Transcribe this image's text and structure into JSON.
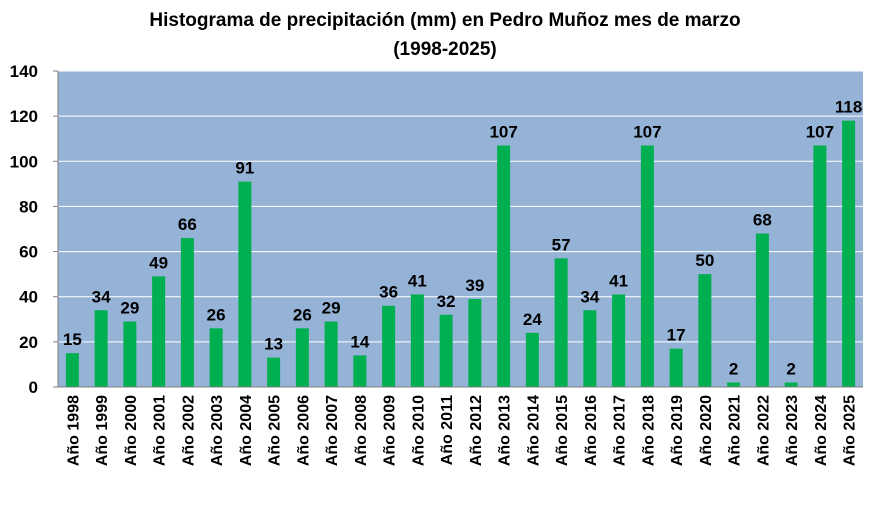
{
  "chart_data": {
    "type": "bar",
    "title": "Histograma de precipitación (mm) en Pedro Muñoz mes de marzo",
    "subtitle": "(1998-2025)",
    "categories": [
      "Año 1998",
      "Año 1999",
      "Año 2000",
      "Año 2001",
      "Año 2002",
      "Año 2003",
      "Año 2004",
      "Año 2005",
      "Año 2006",
      "Año 2007",
      "Año 2008",
      "Año 2009",
      "Año 2010",
      "Año 2011",
      "Año 2012",
      "Año 2013",
      "Año 2014",
      "Año 2015",
      "Año 2016",
      "Año 2017",
      "Año 2018",
      "Año 2019",
      "Año 2020",
      "Año 2021",
      "Año 2022",
      "Año 2023",
      "Año 2024",
      "Año 2025"
    ],
    "values": [
      15,
      34,
      29,
      49,
      66,
      26,
      91,
      13,
      26,
      29,
      14,
      36,
      41,
      32,
      39,
      107,
      24,
      57,
      34,
      41,
      107,
      17,
      50,
      2,
      68,
      2,
      107,
      118
    ],
    "xlabel": "",
    "ylabel": "",
    "ylim": [
      0,
      140
    ],
    "yticks": [
      "0",
      "20",
      "40",
      "60",
      "80",
      "100",
      "120",
      "140"
    ],
    "grid": true,
    "legend": "none",
    "data_labels": true,
    "colors": {
      "bar": "#00B050",
      "plot_background": "#95B3D7",
      "gridline": "#FFFFFF"
    }
  }
}
